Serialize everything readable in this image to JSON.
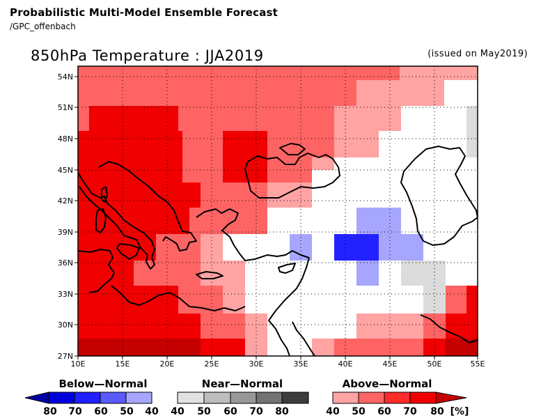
{
  "header": {
    "title": "Probabilistic Multi-Model Ensemble Forecast",
    "subtitle": "/GPC_offenbach"
  },
  "map": {
    "title": "850hPa Temperature : JJA2019",
    "issued": "(issued on May2019)",
    "lon_labels": [
      "10E",
      "15E",
      "20E",
      "25E",
      "30E",
      "35E",
      "40E",
      "45E",
      "50E",
      "55E"
    ],
    "lat_labels": [
      "27N",
      "30N",
      "33N",
      "36N",
      "39N",
      "42N",
      "45N",
      "48N",
      "51N",
      "54N"
    ],
    "lon_range": [
      10,
      55
    ],
    "lat_range": [
      27,
      55
    ],
    "region": "Mediterranean, Black Sea, Middle East",
    "colors": {
      "above_40": "#ffa3a3",
      "above_50": "#ff6464",
      "above_60": "#ff2a2a",
      "above_70": "#f00000",
      "above_80": "#c40000",
      "near_40": "#dcdcdc",
      "below_40": "#a6a6ff",
      "below_70": "#2222ff"
    }
  },
  "legend": {
    "below": {
      "label": "Below—Normal",
      "ticks": [
        "80",
        "70",
        "60",
        "50",
        "40"
      ],
      "colors": [
        "#0000a8",
        "#0000dc",
        "#1f1fff",
        "#5a5aff",
        "#a6a6ff"
      ]
    },
    "near": {
      "label": "Near—Normal",
      "ticks": [
        "40",
        "50",
        "60",
        "70",
        "80"
      ],
      "colors": [
        "#e1e1e1",
        "#bdbdbd",
        "#989898",
        "#727272",
        "#3c3c3c"
      ]
    },
    "above": {
      "label": "Above—Normal",
      "ticks": [
        "40",
        "50",
        "60",
        "70",
        "80"
      ],
      "colors": [
        "#ffa3a3",
        "#ff6464",
        "#ff2a2a",
        "#f00000",
        "#c40000"
      ],
      "unit": "[%]"
    }
  }
}
